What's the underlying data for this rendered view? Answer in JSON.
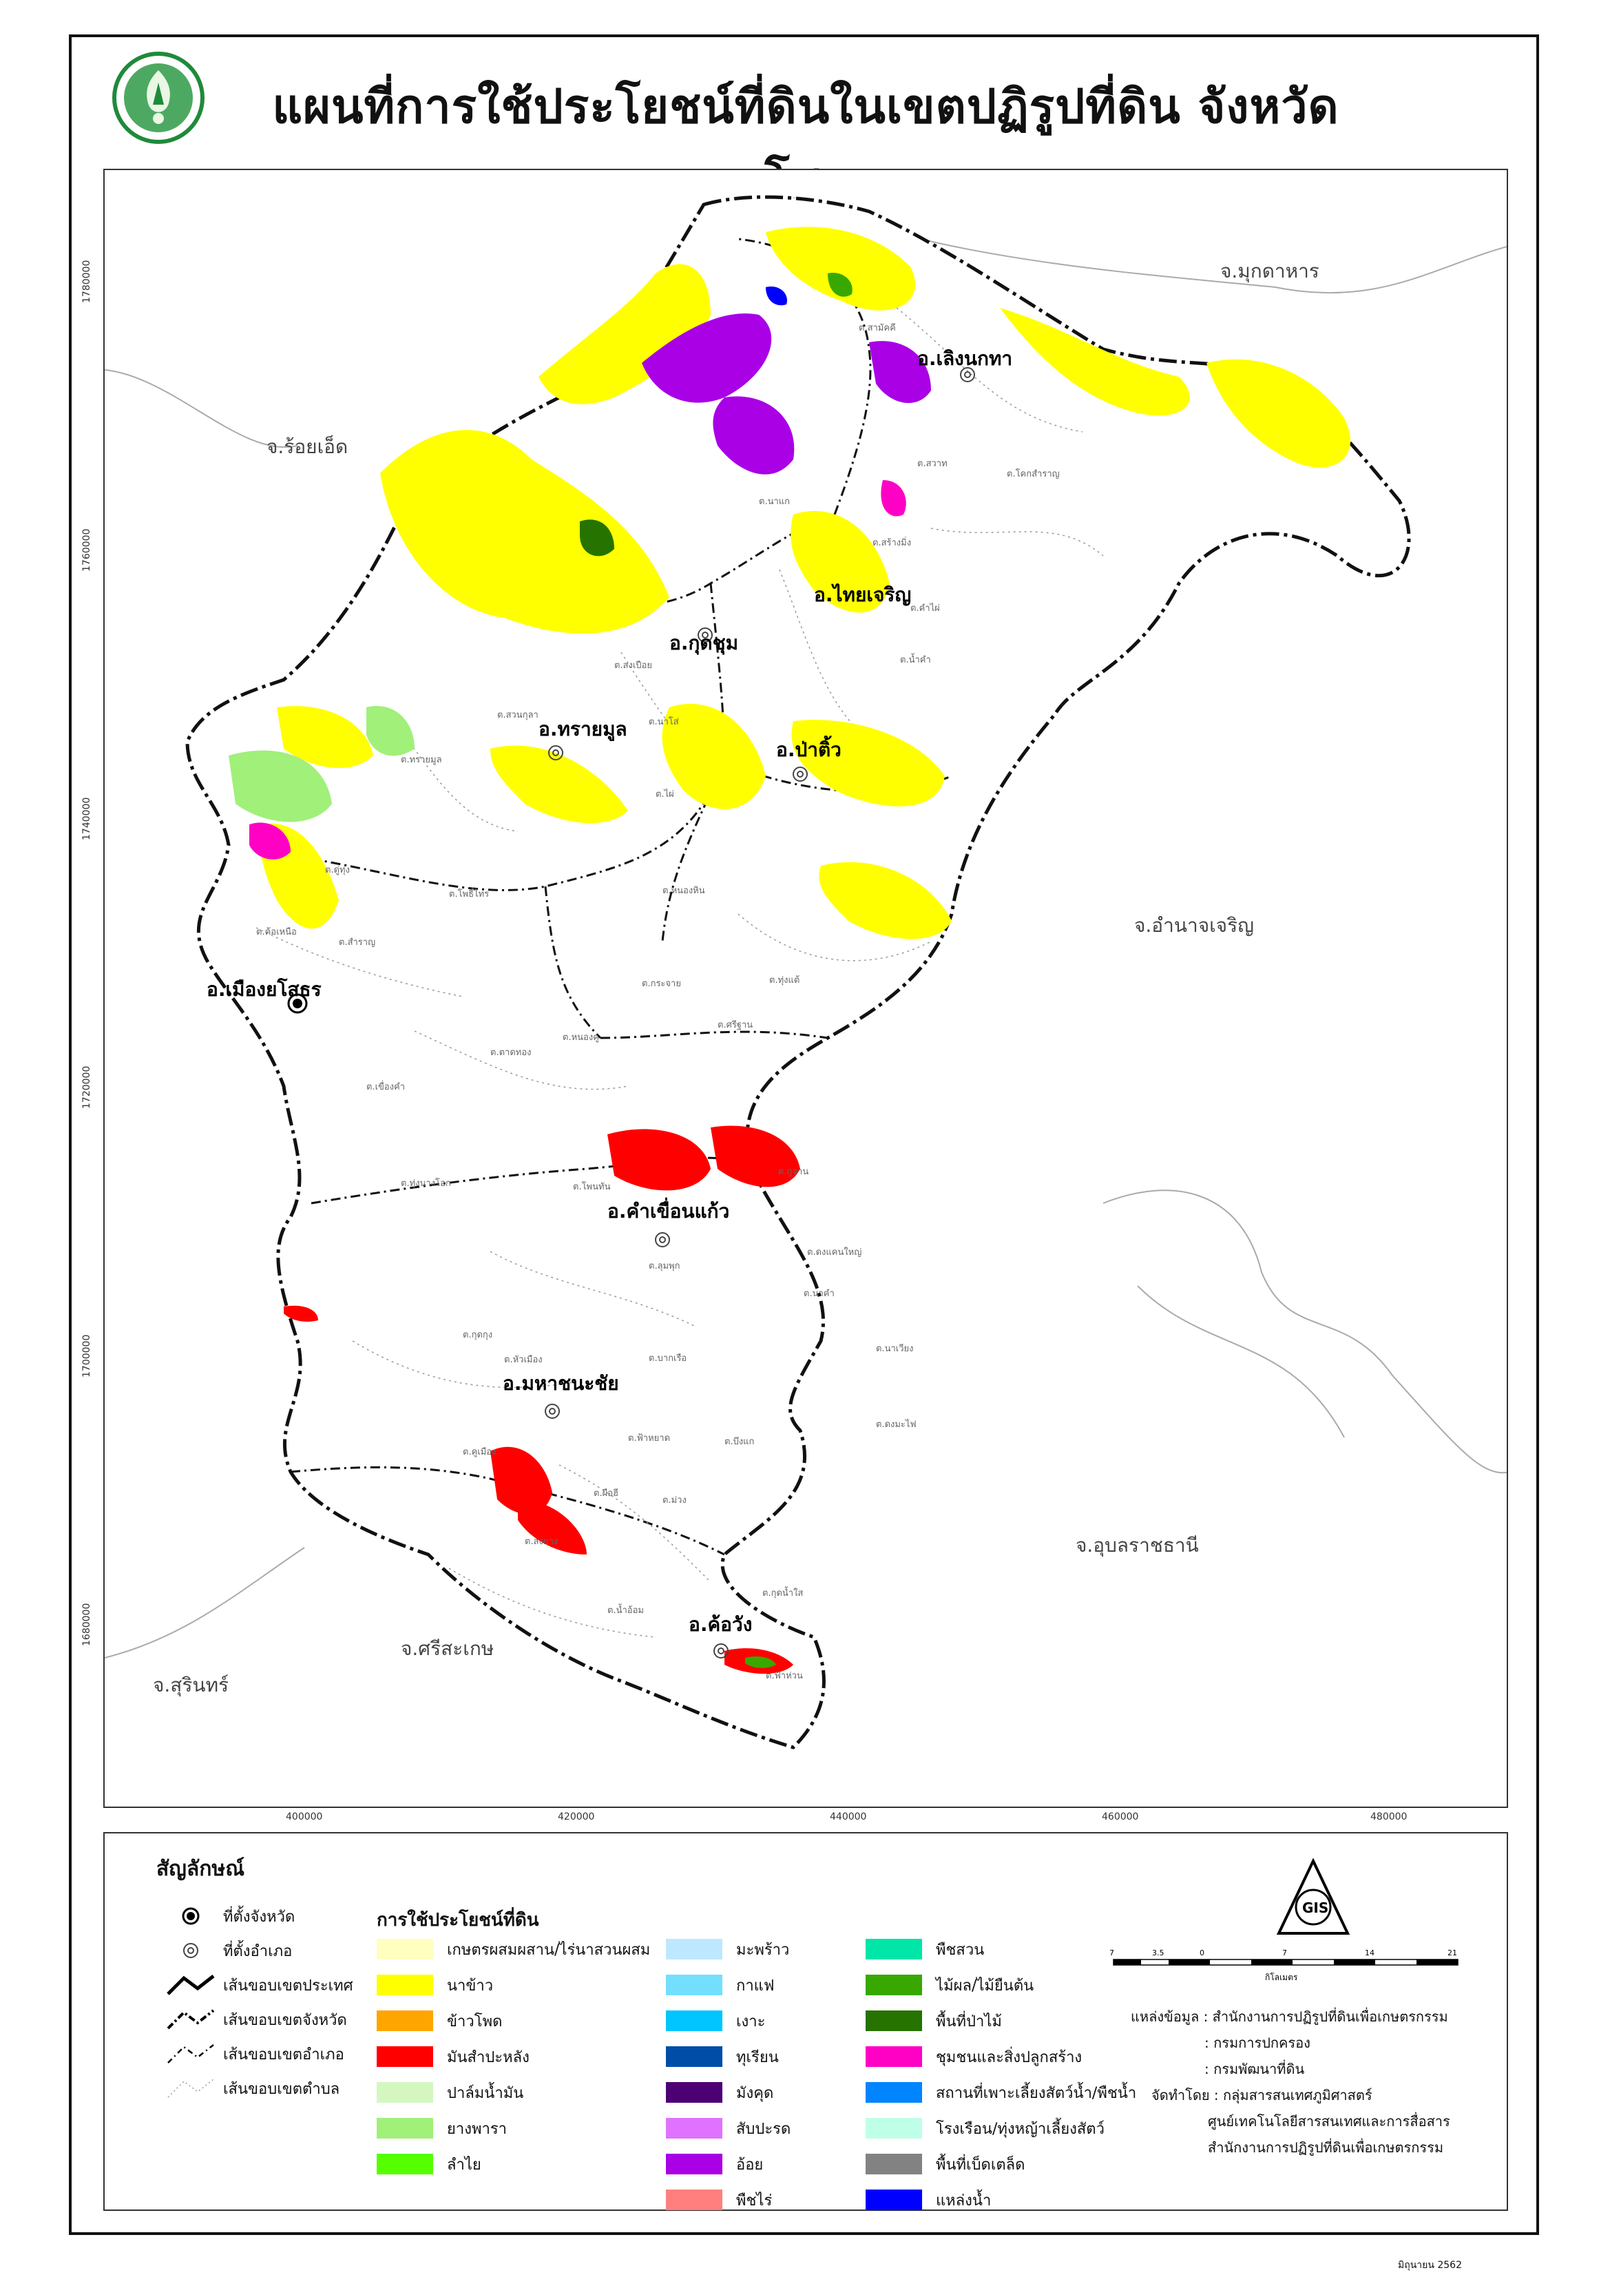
{
  "title": "แผนที่การใช้ประโยชน์ที่ดินในเขตปฏิรูปที่ดิน จังหวัดยโสธร",
  "map": {
    "x_ticks": [
      "400000",
      "420000",
      "440000",
      "460000",
      "480000"
    ],
    "y_ticks": [
      "1780000",
      "1760000",
      "1740000",
      "1720000",
      "1700000",
      "1680000"
    ],
    "provinces": [
      "จ.มุกดาหาร",
      "จ.ร้อยเอ็ด",
      "จ.อำนาจเจริญ",
      "จ.อุบลราชธานี",
      "จ.ศรีสะเกษ",
      "จ.สุรินทร์"
    ],
    "districts": [
      "อ.เลิงนกทา",
      "อ.ไทยเจริญ",
      "อ.กุดชุม",
      "อ.ทรายมูล",
      "อ.ป่าติ้ว",
      "อ.เมืองยโสธร",
      "อ.คำเขื่อนแก้ว",
      "อ.มหาชนะชัย",
      "อ.ค้อวัง"
    ],
    "subdistricts": [
      "ต.สามัคคี",
      "ต.สวาท",
      "ต.สร้างมิ่ง",
      "ต.โคกสำราญ",
      "ต.คำไผ่",
      "ต.น้ำคำ",
      "ต.สงเปือย",
      "ต.สวนกุลา",
      "ต.นาโส่",
      "ต.ทรายมูล",
      "ต.ไผ่",
      "ต.กระจาย",
      "ต.ศรีฐาน",
      "ต.ทุ่งแต้",
      "ต.หนองหิน",
      "ต.ดู่ทุ่ง",
      "ต.สำราญ",
      "ต.ค้อเหนือ",
      "ต.ตาดทอง",
      "ต.เขื่องคำ",
      "ต.ทุ่งนางโอก",
      "ต.หนองคู",
      "ต.โพนทัน",
      "ต.ดงแคนใหญ่",
      "ต.กู่จาน",
      "ต.ลุมพุก",
      "ต.นาคำ",
      "ต.คูเมือง",
      "ต.ฟ้าหยาด",
      "ต.บากเรือ",
      "ต.สงยาง",
      "ต.หัวเมือง",
      "ต.ม่วง",
      "ต.บึงแก",
      "ต.ผือฮี",
      "ต.น้ำอ้อม",
      "ต.กุดน้ำใส",
      "ต.ฟ้าห่วน",
      "ต.ดงมะไฟ",
      "ต.นาเวียง",
      "ต.โพธิ์ไทร",
      "ต.กุดกุง",
      "ต.นาแก"
    ]
  },
  "legend": {
    "title": "สัญลักษณ์",
    "symbols": [
      "ที่ตั้งจังหวัด",
      "ที่ตั้งอำเภอ",
      "เส้นขอบเขตประเทศ",
      "เส้นขอบเขตจังหวัด",
      "เส้นขอบเขตอำเภอ",
      "เส้นขอบเขตตำบล"
    ],
    "landuse_title": "การใช้ประโยชน์ที่ดิน",
    "landuse": [
      {
        "label": "เกษตรผสมผสาน/ไร่นาสวนผสม",
        "color": "#FFFFC0"
      },
      {
        "label": "นาข้าว",
        "color": "#FFFF00"
      },
      {
        "label": "ข้าวโพด",
        "color": "#FFA500"
      },
      {
        "label": "มันสำปะหลัง",
        "color": "#FF0000"
      },
      {
        "label": "ปาล์มน้ำมัน",
        "color": "#D4F7C0"
      },
      {
        "label": "ยางพารา",
        "color": "#A0F07A"
      },
      {
        "label": "ลำไย",
        "color": "#55FF00"
      },
      {
        "label": "มะพร้าว",
        "color": "#BEE8FF"
      },
      {
        "label": "กาแฟ",
        "color": "#73DFFF"
      },
      {
        "label": "เงาะ",
        "color": "#00C5FF"
      },
      {
        "label": "ทุเรียน",
        "color": "#004DA8"
      },
      {
        "label": "มังคุด",
        "color": "#4C0073"
      },
      {
        "label": "สับปะรด",
        "color": "#DF73FF"
      },
      {
        "label": "อ้อย",
        "color": "#A900E6"
      },
      {
        "label": "พืชไร่",
        "color": "#FF7F7F"
      },
      {
        "label": "พืชสวน",
        "color": "#00E6A9"
      },
      {
        "label": "ไม้ผล/ไม้ยืนต้น",
        "color": "#38A800"
      },
      {
        "label": "พื้นที่ป่าไม้",
        "color": "#267300"
      },
      {
        "label": "ชุมชนและสิ่งปลูกสร้าง",
        "color": "#FF00C5"
      },
      {
        "label": "สถานที่เพาะเลี้ยงสัตว์น้ำ/พืชน้ำ",
        "color": "#0084FF"
      },
      {
        "label": "โรงเรือน/ทุ่งหญ้าเลี้ยงสัตว์",
        "color": "#BFFFE8"
      },
      {
        "label": "พื้นที่เบ็ดเตล็ด",
        "color": "#828282"
      },
      {
        "label": "แหล่งน้ำ",
        "color": "#0000FF"
      }
    ],
    "scale_ticks": [
      "7",
      "3.5",
      "0",
      "7",
      "14",
      "21"
    ],
    "scale_unit": "กิโลเมตร",
    "source": [
      "แหล่งข้อมูล : สำนักงานการปฏิรูปที่ดินเพื่อเกษตรกรรม",
      ": กรมการปกครอง",
      ": กรมพัฒนาที่ดิน",
      "จัดทำโดย : กลุ่มสารสนเทศภูมิศาสตร์",
      "ศูนย์เทคโนโลยีสารสนเทศและการสื่อสาร",
      "สำนักงานการปฏิรูปที่ดินเพื่อเกษตรกรรม"
    ],
    "date": "มิถุนายน 2562"
  }
}
